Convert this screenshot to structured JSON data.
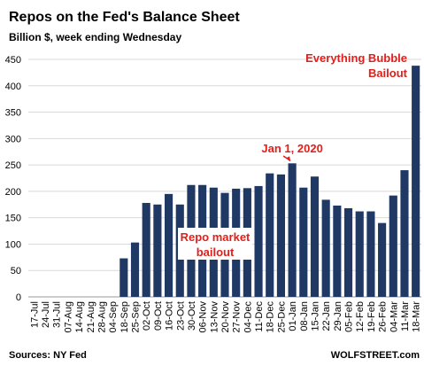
{
  "chart_data": {
    "type": "bar",
    "title": "Repos on the Fed's Balance Sheet",
    "subtitle": "Billion $, week ending Wednesday",
    "categories": [
      "17-Jul",
      "24-Jul",
      "31-Jul",
      "07-Aug",
      "14-Aug",
      "21-Aug",
      "28-Aug",
      "04-Sep",
      "18-Sep",
      "25-Sep",
      "02-Oct",
      "09-Oct",
      "16-Oct",
      "23-Oct",
      "30-Oct",
      "06-Nov",
      "13-Nov",
      "20-Nov",
      "27-Nov",
      "04-Dec",
      "11-Dec",
      "18-Dec",
      "25-Dec",
      "01-Jan",
      "08-Jan",
      "15-Jan",
      "22-Jan",
      "29-Jan",
      "05-Feb",
      "12-Feb",
      "19-Feb",
      "26-Feb",
      "04-Mar",
      "11-Mar",
      "18-Mar"
    ],
    "values": [
      null,
      null,
      null,
      null,
      null,
      null,
      null,
      null,
      73,
      103,
      178,
      175,
      195,
      175,
      212,
      212,
      207,
      197,
      205,
      206,
      210,
      234,
      232,
      253,
      207,
      228,
      184,
      173,
      168,
      162,
      162,
      140,
      192,
      240,
      438
    ],
    "color": "#1f3864",
    "ylim": [
      0,
      450
    ],
    "yticks": [
      0,
      50,
      100,
      150,
      200,
      250,
      300,
      350,
      400,
      450
    ],
    "grid": true,
    "annotations": [
      {
        "lines": [
          "Jan 1, 2020"
        ],
        "color": "#e0201b"
      },
      {
        "lines": [
          "Repo market",
          "bailout"
        ],
        "color": "#e0201b"
      },
      {
        "lines": [
          "Everything Bubble",
          "Bailout"
        ],
        "color": "#e0201b"
      }
    ],
    "source": "Sources: NY Fed",
    "credit": "WOLFSTREET.com"
  }
}
